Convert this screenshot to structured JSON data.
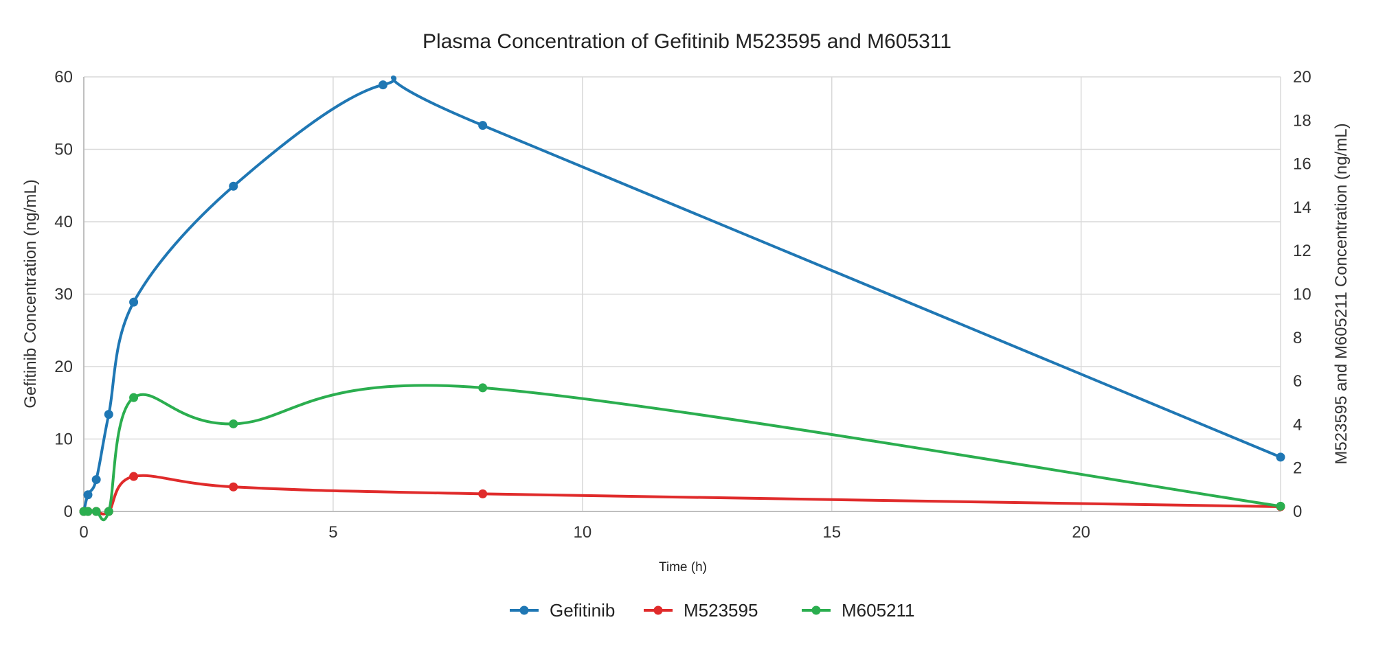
{
  "chart_data": {
    "type": "line",
    "title": "Plasma Concentration of Gefitinib M523595 and M605311",
    "xlabel": "Time (h)",
    "ylabel": "Gefitinib Concentration (ng/mL)",
    "y2label": "M523595 and M605211 Concentration (ng/mL)",
    "xlim": [
      0,
      24
    ],
    "ylim": [
      0,
      60
    ],
    "y2lim": [
      0,
      20
    ],
    "xticks": [
      0,
      5,
      10,
      15,
      20
    ],
    "yticks": [
      0,
      10,
      20,
      30,
      40,
      50,
      60
    ],
    "y2ticks": [
      0,
      2,
      4,
      6,
      8,
      10,
      12,
      14,
      16,
      18,
      20
    ],
    "grid": true,
    "legend_position": "bottom",
    "smoothed": true,
    "x": [
      0,
      0.083,
      0.25,
      0.5,
      1,
      3,
      6,
      8,
      24
    ],
    "series": [
      {
        "name": "Gefitinib",
        "axis": "left",
        "color": "#1f77b4",
        "values": [
          0,
          2.3,
          4.4,
          13.4,
          28.9,
          44.9,
          58.9,
          53.3,
          7.5
        ]
      },
      {
        "name": "M523595",
        "axis": "right",
        "color": "#e02b2b",
        "values": [
          0,
          0,
          0,
          0,
          1.61,
          1.13,
          null,
          0.81,
          0.22
        ]
      },
      {
        "name": "M605211",
        "axis": "right",
        "color": "#2bae4f",
        "values": [
          0,
          0,
          0,
          0,
          5.24,
          4.03,
          null,
          5.69,
          0.24
        ]
      }
    ]
  }
}
